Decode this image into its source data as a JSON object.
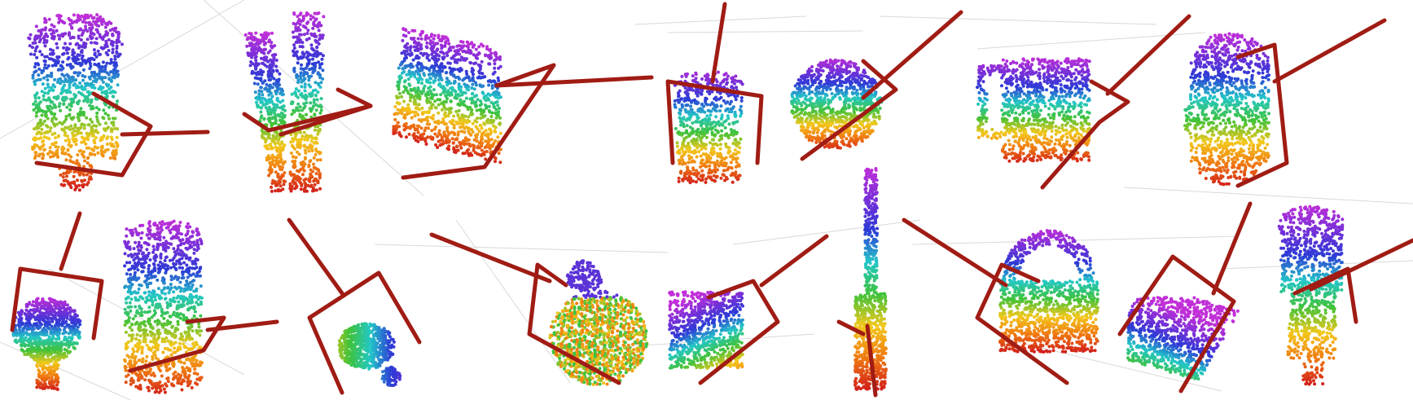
{
  "figure": {
    "background": "#ffffff",
    "gripper_color": "#a01c14",
    "grid_color": "#d9d9d9",
    "colormap": [
      "#d2201a",
      "#f07a10",
      "#f3c81a",
      "#3fc23a",
      "#22c7c7",
      "#2d3ad6",
      "#7a2fd8",
      "#c22fd8"
    ],
    "panels": [
      {
        "object": "bottle-upright",
        "row": 1,
        "col": 1
      },
      {
        "object": "fork-pair",
        "row": 1,
        "col": 2
      },
      {
        "object": "box-tilted",
        "row": 1,
        "col": 3
      },
      {
        "object": "cup-short",
        "row": 1,
        "col": 4
      },
      {
        "object": "disk",
        "row": 1,
        "col": 5
      },
      {
        "object": "mug",
        "row": 1,
        "col": 6
      },
      {
        "object": "jug",
        "row": 1,
        "col": 7
      },
      {
        "object": "bulb",
        "row": 2,
        "col": 1
      },
      {
        "object": "can-tall",
        "row": 2,
        "col": 2
      },
      {
        "object": "mug-lying",
        "row": 2,
        "col": 3
      },
      {
        "object": "apple",
        "row": 2,
        "col": 4
      },
      {
        "object": "cube",
        "row": 2,
        "col": 5
      },
      {
        "object": "screwdriver",
        "row": 2,
        "col": 6
      },
      {
        "object": "padlock",
        "row": 2,
        "col": 7
      },
      {
        "object": "block",
        "row": 2,
        "col": 8
      },
      {
        "object": "bottle-slim",
        "row": 2,
        "col": 9
      }
    ]
  }
}
